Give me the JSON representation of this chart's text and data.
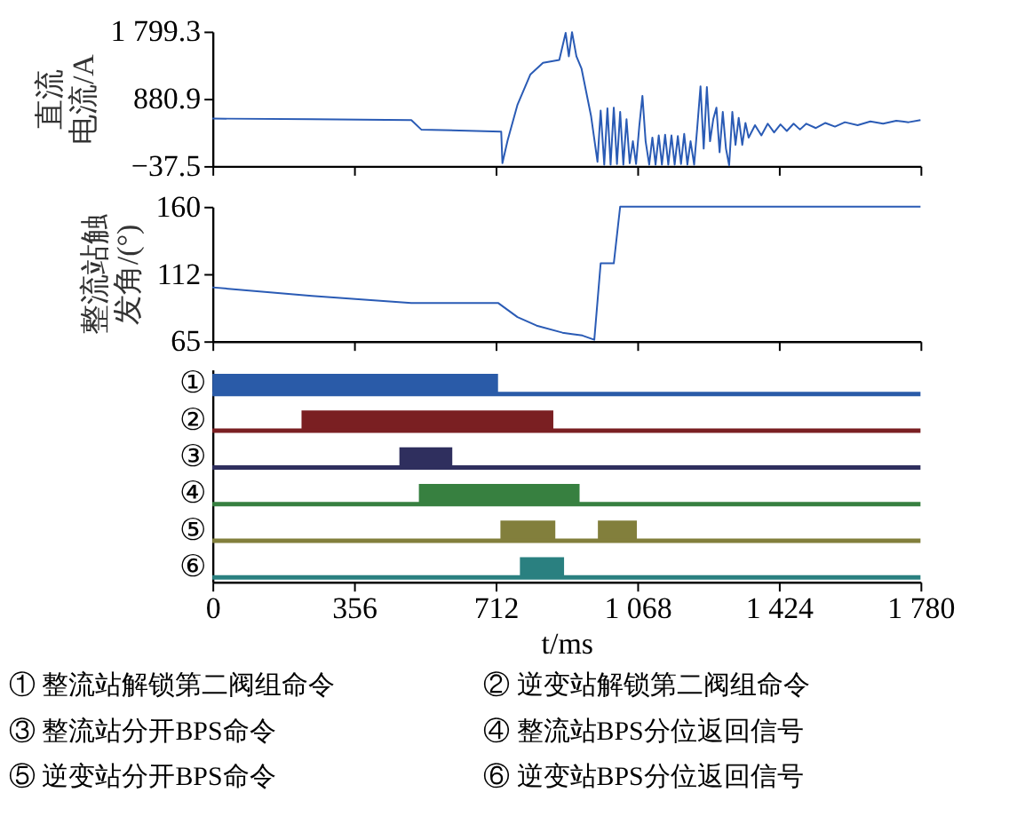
{
  "chart_data": [
    {
      "type": "line",
      "ylabel": "直流电流/A",
      "color": "#2a5bb5",
      "line_style": "solid",
      "tick_labels": "y",
      "x": [
        0,
        250,
        500,
        525,
        726,
        729,
        742,
        767,
        799,
        831,
        872,
        888,
        896,
        904,
        915,
        928,
        952,
        968,
        976,
        985,
        993,
        1001,
        1009,
        1017,
        1025,
        1033,
        1041,
        1049,
        1057,
        1065,
        1073,
        1081,
        1089,
        1098,
        1106,
        1114,
        1122,
        1130,
        1138,
        1146,
        1154,
        1162,
        1170,
        1178,
        1186,
        1194,
        1202,
        1211,
        1219,
        1227,
        1235,
        1243,
        1251,
        1259,
        1267,
        1275,
        1283,
        1291,
        1299,
        1307,
        1315,
        1323,
        1332,
        1340,
        1348,
        1364,
        1380,
        1396,
        1412,
        1428,
        1444,
        1461,
        1477,
        1493,
        1517,
        1541,
        1565,
        1590,
        1622,
        1654,
        1686,
        1719,
        1750,
        1780
      ],
      "values": [
        610,
        600,
        590,
        460,
        430,
        0,
        310,
        800,
        1210,
        1370,
        1410,
        1780,
        1460,
        1790,
        1460,
        1290,
        640,
        20,
        720,
        -20,
        750,
        -20,
        760,
        -10,
        700,
        -20,
        600,
        0,
        300,
        -10,
        500,
        920,
        300,
        -20,
        350,
        -20,
        380,
        -20,
        390,
        -20,
        380,
        -20,
        370,
        -10,
        400,
        -20,
        300,
        -20,
        500,
        1050,
        200,
        1040,
        300,
        600,
        760,
        150,
        700,
        200,
        -30,
        700,
        250,
        620,
        250,
        550,
        350,
        520,
        380,
        540,
        420,
        530,
        440,
        540,
        460,
        540,
        480,
        550,
        500,
        560,
        520,
        570,
        540,
        580,
        560,
        590
      ],
      "xlim": [
        0,
        1780
      ],
      "xticks": [
        {
          "value": 0,
          "label": null
        },
        {
          "value": 356,
          "label": null
        },
        {
          "value": 712,
          "label": null
        },
        {
          "value": 1068,
          "label": null
        },
        {
          "value": 1424,
          "label": null
        },
        {
          "value": 1780,
          "label": null
        }
      ],
      "ylim": [
        -37.5,
        1799.3
      ],
      "yticks": [
        {
          "value": -37.5,
          "label": "−37.5"
        },
        {
          "value": 880.9,
          "label": "880.9"
        },
        {
          "value": 1799.3,
          "label": "1 799.3"
        }
      ]
    },
    {
      "type": "line",
      "ylabel": "整流站触发角/(°)",
      "color": "#2a5bb5",
      "line_style": "solid",
      "tick_labels": "y",
      "x": [
        0,
        250,
        500,
        718,
        767,
        815,
        880,
        904,
        930,
        960,
        976,
        1009,
        1025,
        1780
      ],
      "values": [
        103,
        97,
        92,
        92,
        82,
        76,
        71,
        70,
        69,
        66,
        120,
        120,
        160,
        160
      ],
      "xlim": [
        0,
        1780
      ],
      "xticks": [
        {
          "value": 0,
          "label": null
        },
        {
          "value": 356,
          "label": null
        },
        {
          "value": 712,
          "label": null
        },
        {
          "value": 1068,
          "label": null
        },
        {
          "value": 1424,
          "label": null
        },
        {
          "value": 1780,
          "label": null
        }
      ],
      "ylim": [
        65,
        160
      ],
      "yticks": [
        65,
        112,
        160
      ]
    },
    {
      "type": "bar",
      "orientation": "horizontal",
      "xlabel": "t/ms",
      "categories": [
        "①",
        "②",
        "③",
        "④",
        "⑤",
        "⑥"
      ],
      "series": [
        {
          "values": [
            718,
            633,
            133,
            404,
            138,
            111
          ],
          "base": [
            0,
            224,
            470,
            519,
            724,
            773
          ],
          "colors": [
            "#2a5ba8",
            "#7a1f22",
            "#2f2f5e",
            "#378040",
            "#827f3c",
            "#2a8080"
          ]
        },
        {
          "values": [
            null,
            null,
            null,
            null,
            98,
            null
          ],
          "base": [
            null,
            null,
            null,
            null,
            969,
            null
          ],
          "colors": [
            "#2a5ba8",
            "#7a1f22",
            "#2f2f5e",
            "#378040",
            "#827f3c",
            "#2a8080"
          ]
        }
      ],
      "ref_lines": [
        {
          "axis": "y",
          "value": "①",
          "color": "#2a5ba8"
        },
        {
          "axis": "y",
          "value": "②",
          "color": "#7a1f22"
        },
        {
          "axis": "y",
          "value": "③",
          "color": "#2f2f5e"
        },
        {
          "axis": "y",
          "value": "④",
          "color": "#378040"
        },
        {
          "axis": "y",
          "value": "⑤",
          "color": "#827f3c"
        },
        {
          "axis": "y",
          "value": "⑥",
          "color": "#2a8080"
        }
      ],
      "xlim": [
        0,
        1780
      ],
      "xticks": [
        0,
        356,
        712,
        {
          "value": 1068,
          "label": "1 068"
        },
        {
          "value": 1424,
          "label": "1 424"
        },
        {
          "value": 1780,
          "label": "1 780"
        }
      ],
      "annotations": [
        "① 整流站解锁第二阀组命令",
        "② 逆变站解锁第二阀组命令",
        "③ 整流站分开BPS命令",
        "④ 整流站BPS分位返回信号",
        "⑤ 逆变站分开BPS命令",
        "⑥ 逆变站BPS分位返回信号"
      ]
    }
  ]
}
